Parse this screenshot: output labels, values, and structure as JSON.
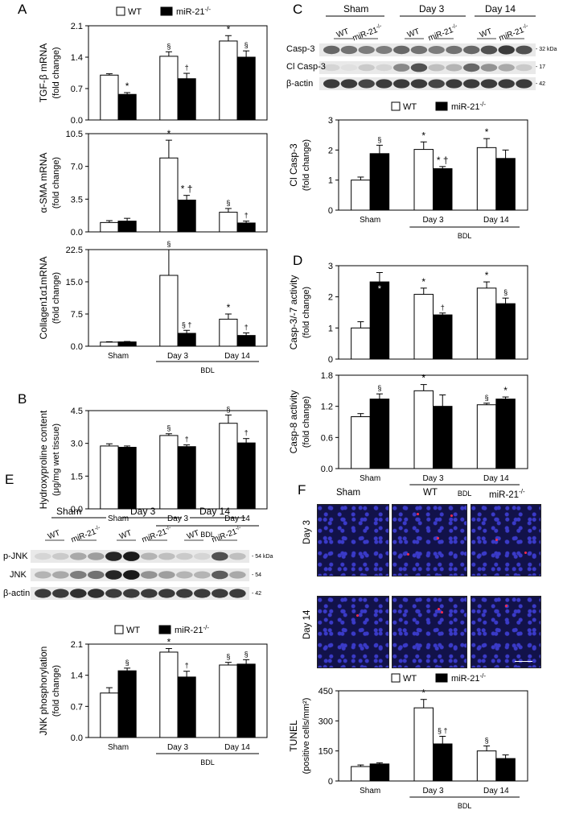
{
  "panel_letters": [
    "A",
    "B",
    "C",
    "D",
    "E",
    "F"
  ],
  "legend": {
    "wt": "WT",
    "ko": "miR-21",
    "ko_sup": "-/-"
  },
  "colors": {
    "wt": "#ffffff",
    "ko": "#000000"
  },
  "blot_c": {
    "groups": [
      "Sham",
      "Day 3",
      "Day 14"
    ],
    "lane_labels": [
      "WT",
      "miR-21",
      "WT",
      "miR-21",
      "WT",
      "miR-21"
    ],
    "lane_sup": "-/-",
    "rows": [
      "Casp-3",
      "Cl Casp-3",
      "β-actin"
    ],
    "kda": [
      "- 32 kDa",
      "- 17",
      "- 42"
    ]
  },
  "blot_e": {
    "groups": [
      "Sham",
      "Day 3",
      "Day 14"
    ],
    "lane_labels": [
      "WT",
      "miR-21",
      "WT",
      "miR-21",
      "WT",
      "miR-21"
    ],
    "lane_sup": "-/-",
    "rows": [
      "p-JNK",
      "JNK",
      "β-actin"
    ],
    "kda": [
      "- 54 kDa",
      "- 54",
      "- 42"
    ]
  },
  "tunel_images": {
    "columns": [
      "Sham",
      "WT",
      "miR-21"
    ],
    "column_sup": "-/-",
    "rows": [
      "Day 3",
      "Day 14"
    ]
  },
  "chart_data": [
    {
      "id": "A1",
      "type": "bar",
      "ylabel": "TGF-β mRNA",
      "ylabel2": "(fold change)",
      "ylim": [
        0,
        2.1
      ],
      "yticks": [
        "0.0",
        "0.7",
        "1.4",
        "2.1"
      ],
      "categories": [
        "Sham",
        "Day 3",
        "Day 14"
      ],
      "group_label": "BDL",
      "series": [
        {
          "name": "WT",
          "values": [
            1.0,
            1.42,
            1.76
          ],
          "errors": [
            0.03,
            0.1,
            0.12
          ],
          "marks": [
            "",
            "§",
            "*"
          ]
        },
        {
          "name": "miR-21-/-",
          "values": [
            0.57,
            0.92,
            1.4
          ],
          "errors": [
            0.04,
            0.12,
            0.14
          ],
          "marks": [
            "*",
            "†",
            "§"
          ]
        }
      ]
    },
    {
      "id": "A2",
      "type": "bar",
      "ylabel": "α-SMA mRNA",
      "ylabel2": "(fold change)",
      "ylim": [
        0,
        10.5
      ],
      "yticks": [
        "0.0",
        "3.5",
        "7.0",
        "10.5"
      ],
      "categories": [
        "Sham",
        "Day 3",
        "Day 14"
      ],
      "group_label": "BDL",
      "series": [
        {
          "name": "WT",
          "values": [
            1.0,
            7.9,
            2.1
          ],
          "errors": [
            0.2,
            1.9,
            0.4
          ],
          "marks": [
            "",
            "*",
            "§"
          ]
        },
        {
          "name": "miR-21-/-",
          "values": [
            1.15,
            3.4,
            0.95
          ],
          "errors": [
            0.3,
            0.5,
            0.2
          ],
          "marks": [
            "",
            "* †",
            "†"
          ]
        }
      ]
    },
    {
      "id": "A3",
      "type": "bar",
      "ylabel": "Collagen1α1mRNA",
      "ylabel2": "(fold change)",
      "ylim": [
        0,
        22.5
      ],
      "yticks": [
        "0.0",
        "7.5",
        "15.0",
        "22.5"
      ],
      "categories": [
        "Sham",
        "Day 3",
        "Day 14"
      ],
      "group_label": "BDL",
      "series": [
        {
          "name": "WT",
          "values": [
            0.95,
            16.5,
            6.3
          ],
          "errors": [
            0.1,
            6.0,
            1.2
          ],
          "marks": [
            "",
            "§",
            "*"
          ]
        },
        {
          "name": "miR-21-/-",
          "values": [
            1.0,
            3.0,
            2.5
          ],
          "errors": [
            0.1,
            0.7,
            0.6
          ],
          "marks": [
            "",
            "§ †",
            "†"
          ]
        }
      ]
    },
    {
      "id": "B",
      "type": "bar",
      "ylabel": "Hydroxyproline content",
      "ylabel2": "(μg/mg wet tissue)",
      "ylim": [
        0,
        4.5
      ],
      "yticks": [
        "0.0",
        "1.5",
        "3.0",
        "4.5"
      ],
      "categories": [
        "Sham",
        "Day 3",
        "Day 14"
      ],
      "group_label": "BDL",
      "series": [
        {
          "name": "WT",
          "values": [
            2.88,
            3.36,
            3.92
          ],
          "errors": [
            0.1,
            0.08,
            0.38
          ],
          "marks": [
            "",
            "§",
            "§"
          ]
        },
        {
          "name": "miR-21-/-",
          "values": [
            2.82,
            2.85,
            3.02
          ],
          "errors": [
            0.06,
            0.08,
            0.2
          ],
          "marks": [
            "",
            "†",
            "†"
          ]
        }
      ]
    },
    {
      "id": "C",
      "type": "bar",
      "ylabel": "Cl Casp-3",
      "ylabel2": "(fold change)",
      "ylim": [
        0,
        3
      ],
      "yticks": [
        "0",
        "1",
        "2",
        "3"
      ],
      "categories": [
        "Sham",
        "Day 3",
        "Day 14"
      ],
      "group_label": "BDL",
      "series": [
        {
          "name": "WT",
          "values": [
            1.0,
            2.02,
            2.08
          ],
          "errors": [
            0.1,
            0.25,
            0.3
          ],
          "marks": [
            "",
            "*",
            "*"
          ]
        },
        {
          "name": "miR-21-/-",
          "values": [
            1.88,
            1.38,
            1.72
          ],
          "errors": [
            0.28,
            0.07,
            0.28
          ],
          "marks": [
            "§",
            "* †",
            ""
          ]
        }
      ]
    },
    {
      "id": "D1",
      "type": "bar",
      "ylabel": "Casp-3/-7 activity",
      "ylabel2": "(fold change)",
      "ylim": [
        0,
        3
      ],
      "yticks": [
        "0",
        "1",
        "2",
        "3"
      ],
      "categories": [
        "Sham",
        "Day 3",
        "Day 14"
      ],
      "group_label": "",
      "series": [
        {
          "name": "WT",
          "values": [
            1.0,
            2.08,
            2.28
          ],
          "errors": [
            0.2,
            0.2,
            0.2
          ],
          "marks": [
            "",
            "*",
            "*"
          ]
        },
        {
          "name": "miR-21-/-",
          "values": [
            2.48,
            1.42,
            1.78
          ],
          "errors": [
            0.3,
            0.06,
            0.18
          ],
          "marks": [
            "*",
            "†",
            "§"
          ]
        }
      ]
    },
    {
      "id": "D2",
      "type": "bar",
      "ylabel": "Casp-8 activity",
      "ylabel2": "(fold change)",
      "ylim": [
        0,
        1.8
      ],
      "yticks": [
        "0.0",
        "0.6",
        "1.2",
        "1.8"
      ],
      "categories": [
        "Sham",
        "Day 3",
        "Day 14"
      ],
      "group_label": "BDL",
      "series": [
        {
          "name": "WT",
          "values": [
            1.0,
            1.5,
            1.23
          ],
          "errors": [
            0.06,
            0.12,
            0.03
          ],
          "marks": [
            "",
            "*",
            "§"
          ]
        },
        {
          "name": "miR-21-/-",
          "values": [
            1.34,
            1.2,
            1.34
          ],
          "errors": [
            0.1,
            0.22,
            0.04
          ],
          "marks": [
            "§",
            "",
            "*"
          ]
        }
      ]
    },
    {
      "id": "E",
      "type": "bar",
      "ylabel": "JNK phosphorylation",
      "ylabel2": "(fold change)",
      "ylim": [
        0,
        2.1
      ],
      "yticks": [
        "0.0",
        "0.7",
        "1.4",
        "2.1"
      ],
      "categories": [
        "Sham",
        "Day 3",
        "Day 14"
      ],
      "group_label": "BDL",
      "series": [
        {
          "name": "WT",
          "values": [
            1.0,
            1.92,
            1.63
          ],
          "errors": [
            0.12,
            0.08,
            0.06
          ],
          "marks": [
            "",
            "*",
            "§"
          ]
        },
        {
          "name": "miR-21-/-",
          "values": [
            1.5,
            1.36,
            1.65
          ],
          "errors": [
            0.06,
            0.13,
            0.1
          ],
          "marks": [
            "§",
            "†",
            "§"
          ]
        }
      ]
    },
    {
      "id": "F",
      "type": "bar",
      "ylabel": "TUNEL",
      "ylabel2": "(positive cells/mm²)",
      "ylim": [
        0,
        450
      ],
      "yticks": [
        "0",
        "150",
        "300",
        "450"
      ],
      "categories": [
        "Sham",
        "Day 3",
        "Day 14"
      ],
      "group_label": "BDL",
      "series": [
        {
          "name": "WT",
          "values": [
            72,
            365,
            150
          ],
          "errors": [
            8,
            42,
            25
          ],
          "marks": [
            "",
            "*",
            "§"
          ]
        },
        {
          "name": "miR-21-/-",
          "values": [
            85,
            185,
            112
          ],
          "errors": [
            6,
            38,
            18
          ],
          "marks": [
            "",
            "§ †",
            ""
          ]
        }
      ]
    }
  ]
}
